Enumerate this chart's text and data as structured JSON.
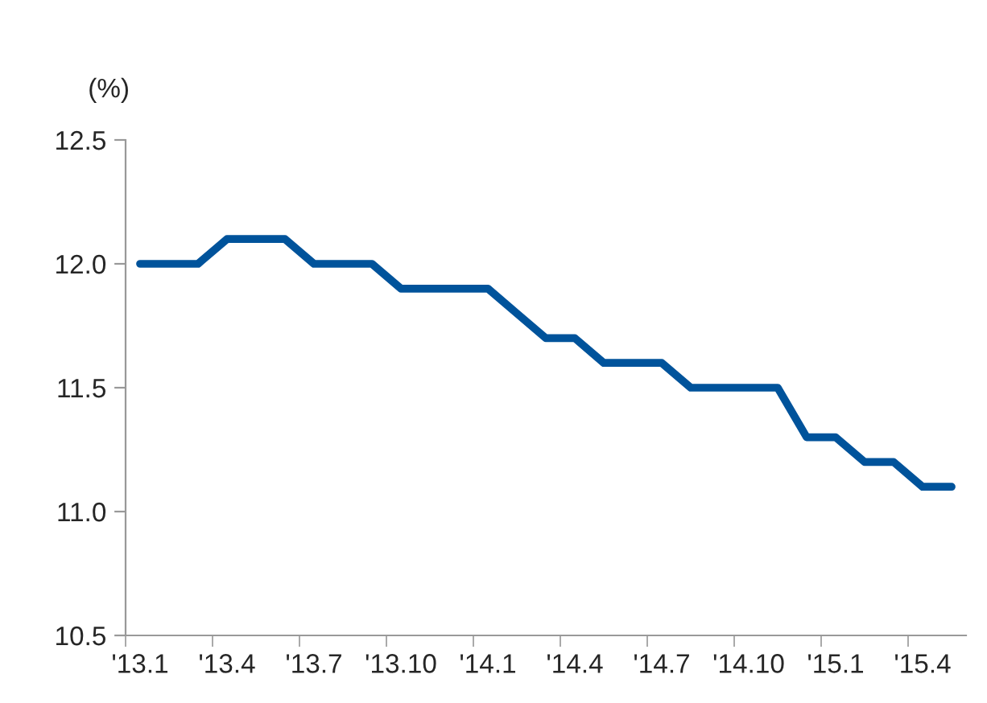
{
  "chart_data": {
    "type": "line",
    "ylabel": "(%)",
    "categories": [
      "'13.1",
      null,
      null,
      "'13.4",
      null,
      null,
      "'13.7",
      null,
      null,
      "'13.10",
      null,
      null,
      "'14.1",
      null,
      null,
      "'14.4",
      null,
      null,
      "'14.7",
      null,
      null,
      "'14.10",
      null,
      null,
      "'15.1",
      null,
      null,
      "'15.4",
      null
    ],
    "series": [
      {
        "color": "#00539b",
        "values": [
          12.0,
          12.0,
          12.0,
          12.1,
          12.1,
          12.1,
          12.0,
          12.0,
          12.0,
          11.9,
          11.9,
          11.9,
          11.9,
          11.8,
          11.7,
          11.7,
          11.6,
          11.6,
          11.6,
          11.5,
          11.5,
          11.5,
          11.5,
          11.3,
          11.3,
          11.2,
          11.2,
          11.1,
          11.1
        ]
      }
    ],
    "ylim": [
      10.5,
      12.5
    ],
    "yticks": [
      10.5,
      {
        "value": 11,
        "label": "11.0"
      },
      11.5,
      {
        "value": 12,
        "label": "12.0"
      },
      12.5
    ],
    "grid": false,
    "legend": false,
    "marker": "none",
    "line_style": "solid"
  }
}
